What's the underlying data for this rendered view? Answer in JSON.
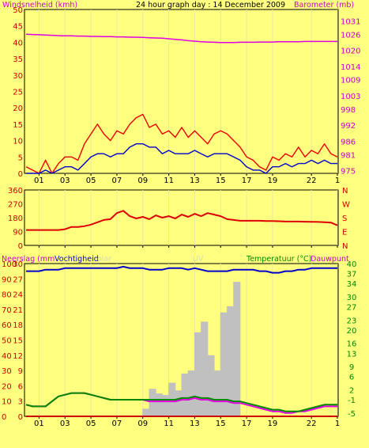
{
  "header": {
    "left_label": "Windsnelheid (kmh)",
    "title": "24 hour graph day : 14 December 2009",
    "right_label": "Barometer (mb)"
  },
  "colors": {
    "background": "#FFFF80",
    "wind_gust": "#EE0000",
    "wind_avg": "#0000CC",
    "barometer": "#E000E0",
    "wind_dir": "#DD0000",
    "humidity": "#0000CC",
    "temperature": "#008800",
    "dewpoint": "#E000E0",
    "rain": "#CC0000",
    "uv_solar": "#C0C0C0",
    "green_label": "#008800",
    "magenta_label": "#CC00CC",
    "faint_label": "#D8D8C0"
  },
  "x_tick_labels": [
    "01",
    "03",
    "05",
    "07",
    "09",
    "11",
    "13",
    "15",
    "17",
    "19",
    "22",
    "1"
  ],
  "chart_data": [
    {
      "type": "line",
      "title": "24 hour graph day : 14 December 2009",
      "x_hours": [
        0,
        0.5,
        1,
        1.5,
        2,
        2.5,
        3,
        3.5,
        4,
        4.5,
        5,
        5.5,
        6,
        6.5,
        7,
        7.5,
        8,
        8.5,
        9,
        9.5,
        10,
        10.5,
        11,
        11.5,
        12,
        12.5,
        13,
        13.5,
        14,
        14.5,
        15,
        15.5,
        16,
        16.5,
        17,
        17.5,
        18,
        18.5,
        19,
        19.5,
        20,
        20.5,
        21,
        21.5,
        22,
        22.5,
        23,
        23.5,
        24
      ],
      "series": [
        {
          "name": "Windsnelheid (kmh)",
          "axis": "left",
          "values": [
            2,
            1,
            0,
            4,
            0,
            3,
            5,
            5,
            4,
            9,
            12,
            15,
            12,
            10,
            13,
            12,
            15,
            17,
            18,
            14,
            15,
            12,
            13,
            11,
            14,
            11,
            13,
            11,
            9,
            12,
            13,
            12,
            10,
            8,
            5,
            4,
            2,
            1,
            5,
            4,
            6,
            5,
            8,
            5,
            7,
            6,
            9,
            6,
            5
          ]
        },
        {
          "name": "Windsnelheid (kmh)",
          "axis": "left",
          "values": [
            0,
            0,
            0,
            1,
            0,
            1,
            2,
            2,
            1,
            3,
            5,
            6,
            6,
            5,
            6,
            6,
            8,
            9,
            9,
            8,
            8,
            6,
            7,
            6,
            6,
            6,
            7,
            6,
            5,
            6,
            6,
            6,
            5,
            4,
            2,
            1,
            1,
            0,
            2,
            2,
            3,
            2,
            3,
            3,
            4,
            3,
            4,
            3,
            3
          ]
        },
        {
          "name": "Barometer (mb)",
          "axis": "right",
          "values": [
            1026,
            1025.9,
            1025.8,
            1025.7,
            1025.6,
            1025.5,
            1025.4,
            1025.4,
            1025.3,
            1025.3,
            1025.2,
            1025.2,
            1025.1,
            1025.1,
            1025,
            1025,
            1024.9,
            1024.9,
            1024.8,
            1024.7,
            1024.6,
            1024.5,
            1024.3,
            1024.1,
            1023.9,
            1023.6,
            1023.4,
            1023.2,
            1023.1,
            1023,
            1022.9,
            1022.9,
            1022.9,
            1023,
            1023,
            1023,
            1023.1,
            1023.1,
            1023.1,
            1023.2,
            1023.2,
            1023.2,
            1023.2,
            1023.3,
            1023.3,
            1023.3,
            1023.3,
            1023.3,
            1023.3
          ]
        }
      ],
      "left_axis": {
        "label": "Windsnelheid (kmh)",
        "ylim": [
          0,
          50
        ],
        "ticks": [
          "0",
          "5",
          "10",
          "15",
          "20",
          "25",
          "30",
          "35",
          "40",
          "45",
          "50"
        ]
      },
      "right_axis": {
        "label": "Barometer (mb)",
        "ylim": [
          974,
          1035.25
        ],
        "ticks": [
          "975",
          "981",
          "986",
          "992",
          "998",
          "1003",
          "1009",
          "1014",
          "1020",
          "1026",
          "1031"
        ]
      }
    },
    {
      "type": "line",
      "x_hours": [
        0,
        0.5,
        1,
        1.5,
        2,
        2.5,
        3,
        3.5,
        4,
        4.5,
        5,
        5.5,
        6,
        6.5,
        7,
        7.5,
        8,
        8.5,
        9,
        9.5,
        10,
        10.5,
        11,
        11.5,
        12,
        12.5,
        13,
        13.5,
        14,
        14.5,
        15,
        15.5,
        16,
        16.5,
        17,
        17.5,
        18,
        18.5,
        19,
        19.5,
        20,
        20.5,
        21,
        21.5,
        22,
        22.5,
        23,
        23.5,
        24
      ],
      "series": [
        {
          "name": "wind direction",
          "values": [
            100,
            100,
            100,
            100,
            100,
            100,
            105,
            120,
            120,
            125,
            135,
            150,
            165,
            170,
            210,
            225,
            190,
            175,
            185,
            170,
            195,
            180,
            190,
            175,
            200,
            185,
            205,
            190,
            210,
            200,
            190,
            170,
            165,
            160,
            160,
            160,
            160,
            158,
            158,
            157,
            155,
            155,
            155,
            154,
            153,
            152,
            150,
            148,
            130
          ]
        }
      ],
      "ylim": [
        0,
        360
      ],
      "left_ticks": [
        "0",
        "90",
        "180",
        "270",
        "360"
      ],
      "right_ticks": [
        "N",
        "E",
        "S",
        "W",
        "N"
      ]
    },
    {
      "type": "line",
      "x_hours": [
        0,
        0.5,
        1,
        1.5,
        2,
        2.5,
        3,
        3.5,
        4,
        4.5,
        5,
        5.5,
        6,
        6.5,
        7,
        7.5,
        8,
        8.5,
        9,
        9.5,
        10,
        10.5,
        11,
        11.5,
        12,
        12.5,
        13,
        13.5,
        14,
        14.5,
        15,
        15.5,
        16,
        16.5,
        17,
        17.5,
        18,
        18.5,
        19,
        19.5,
        20,
        20.5,
        21,
        21.5,
        22,
        22.5,
        23,
        23.5,
        24
      ],
      "series": [
        {
          "name": "Vochtigheid",
          "axis": "left",
          "values": [
            95,
            95,
            95,
            96,
            96,
            96,
            97,
            97,
            97,
            97,
            97,
            97,
            97,
            97,
            97,
            98,
            97,
            97,
            97,
            96,
            96,
            96,
            97,
            97,
            97,
            96,
            97,
            96,
            95,
            95,
            95,
            95,
            96,
            96,
            96,
            96,
            95,
            95,
            94,
            94,
            95,
            95,
            96,
            96,
            97,
            97,
            97,
            97,
            97
          ]
        },
        {
          "name": "Temperatuur (°C)",
          "axis": "right",
          "values": [
            -2.5,
            -3,
            -3,
            -3,
            -1.5,
            0,
            0.5,
            1,
            1,
            1,
            0.5,
            0,
            -0.5,
            -1,
            -1,
            -1,
            -1,
            -1,
            -1,
            -1,
            -1,
            -1,
            -1,
            -1,
            -0.5,
            -0.5,
            0,
            -0.5,
            -0.5,
            -1,
            -1,
            -1,
            -1.5,
            -1.5,
            -2,
            -2.5,
            -3,
            -3.5,
            -4,
            -4,
            -4.5,
            -4.5,
            -4.5,
            -4,
            -3.5,
            -3,
            -2.5,
            -2.5,
            -2.5
          ]
        },
        {
          "name": "Dauwpunt",
          "axis": "right",
          "values": [
            -2.5,
            -3,
            -3,
            -3,
            -1.5,
            0,
            0.5,
            1,
            1,
            1,
            0.5,
            0,
            -0.5,
            -1,
            -1,
            -1,
            -1,
            -1,
            -1,
            -1.5,
            -1.5,
            -1.5,
            -1.5,
            -1.5,
            -1,
            -1,
            -0.5,
            -1,
            -1,
            -1.5,
            -1.5,
            -1.5,
            -2,
            -2,
            -2.5,
            -3,
            -3.5,
            -4,
            -4.5,
            -4.5,
            -5,
            -5,
            -4.5,
            -4.5,
            -4,
            -3.5,
            -3,
            -3,
            -3
          ]
        },
        {
          "name": "Neerslag (mm)",
          "axis": "left",
          "values": [
            0,
            0,
            0,
            0,
            0,
            0,
            0,
            0,
            0,
            0,
            0,
            0,
            0,
            0,
            0,
            0,
            0,
            0,
            0,
            0,
            0,
            0,
            0,
            0,
            0,
            0,
            0,
            0,
            0,
            0,
            0,
            0,
            0,
            0,
            0,
            0,
            0,
            0,
            0,
            0,
            0,
            0,
            0,
            0,
            0,
            0,
            0,
            0,
            0
          ]
        },
        {
          "name": "UV",
          "axis": "left",
          "values": [
            0,
            0,
            0,
            0,
            0,
            0,
            0,
            0,
            0,
            0,
            0,
            0,
            0,
            0,
            0,
            0,
            0,
            0,
            5,
            18,
            15,
            14,
            22,
            17,
            28,
            30,
            55,
            62,
            40,
            30,
            68,
            72,
            88,
            0,
            0,
            0,
            0,
            0,
            0,
            0,
            0,
            0,
            0,
            0,
            0,
            0,
            0,
            0,
            0
          ]
        }
      ],
      "left_axis": {
        "ylim": [
          0,
          100
        ],
        "ticks": [
          "0",
          "10",
          "20",
          "30",
          "40",
          "50",
          "60",
          "70",
          "80",
          "90",
          "100"
        ]
      },
      "rain_axis": {
        "ticks": [
          "0",
          "3",
          "6",
          "9",
          "12",
          "15",
          "18",
          "21",
          "24",
          "27",
          "30"
        ]
      },
      "right_axis": {
        "label": "Temperatuur (°C)",
        "ylim": [
          -6,
          40
        ],
        "ticks": [
          "-5",
          "-1",
          "2",
          "6",
          "9",
          "13",
          "16",
          "20",
          "23",
          "27",
          "30",
          "34",
          "37",
          "40"
        ]
      },
      "legend": [
        "Neerslag (mm",
        "Vochtigheid",
        "olar",
        "UV",
        "Temperatuur (°C)",
        "Dauwpunt"
      ]
    }
  ]
}
